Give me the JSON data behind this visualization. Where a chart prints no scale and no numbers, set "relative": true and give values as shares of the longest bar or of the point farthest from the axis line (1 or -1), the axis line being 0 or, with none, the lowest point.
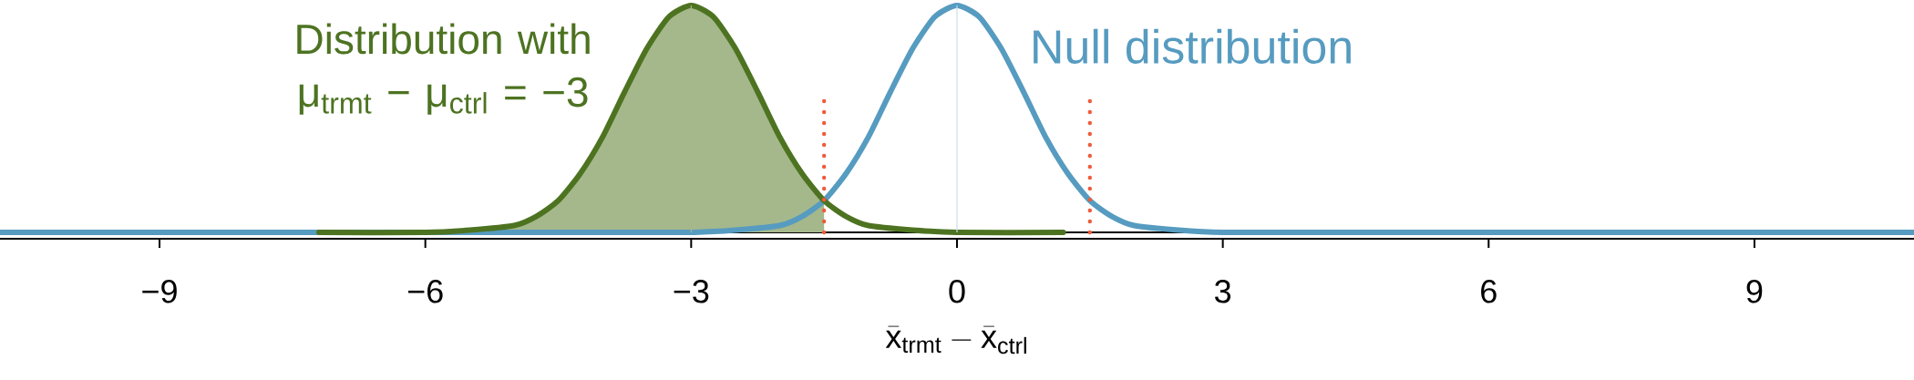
{
  "chart_data": {
    "type": "line",
    "relative": true,
    "tick_labels": "x",
    "xlabel": "\\bar{\\mathrm{x}}_{\\mathrm{trmt}}-\\bar{\\mathrm{x}}_{\\mathrm{ctrl}}",
    "xlim": [
      -10.8,
      10.8
    ],
    "xticks": [
      {
        "value": -9,
        "label": "−9"
      },
      {
        "value": -6,
        "label": "−6"
      },
      {
        "value": -3,
        "label": "−3"
      },
      0,
      3,
      6,
      9
    ],
    "ref_lines": [
      {
        "axis": "y",
        "value": 0,
        "color": "#000000"
      },
      {
        "axis": "x",
        "value": -3,
        "color": "#a3b88e"
      },
      {
        "axis": "x",
        "value": 0,
        "color": "#c8dfea"
      }
    ],
    "series": [
      {
        "type": "area",
        "color": "#a5b88b",
        "x": [
          -7.2,
          -5.5,
          -5,
          -4.75,
          -4.5,
          -4.25,
          -4,
          -3.75,
          -3.5,
          -3.25,
          -3,
          -2.75,
          -2.5,
          -2.25,
          -2,
          -1.75,
          -1.5
        ],
        "values": [
          0,
          0,
          0.03,
          0.07,
          0.14,
          0.26,
          0.42,
          0.62,
          0.81,
          0.95,
          1,
          0.95,
          0.81,
          0.62,
          0.42,
          0.26,
          0.14
        ]
      },
      {
        "name": "Null distribution",
        "color": "#569bc0",
        "x": [
          -10.8,
          -4,
          -3,
          -2.5,
          -2,
          -1.75,
          -1.5,
          -1.25,
          -1,
          -0.75,
          -0.5,
          -0.25,
          0,
          0.25,
          0.5,
          0.75,
          1,
          1.25,
          1.5,
          1.75,
          2,
          2.5,
          3,
          4,
          10.8
        ],
        "values": [
          0,
          0,
          0,
          0.01,
          0.03,
          0.07,
          0.14,
          0.26,
          0.42,
          0.62,
          0.81,
          0.95,
          1,
          0.95,
          0.81,
          0.62,
          0.42,
          0.26,
          0.14,
          0.07,
          0.03,
          0.01,
          0,
          0,
          0
        ]
      },
      {
        "name": "Distribution with μ$_{trmt}$ − μ$_{ctrl}$ = −3",
        "color": "#4d7321",
        "x": [
          -7.2,
          -6,
          -5.5,
          -5,
          -4.75,
          -4.5,
          -4.25,
          -4,
          -3.75,
          -3.5,
          -3.25,
          -3,
          -2.75,
          -2.5,
          -2.25,
          -2,
          -1.75,
          -1.5,
          -1.25,
          -1,
          -0.5,
          0,
          1.2
        ],
        "values": [
          0,
          0,
          0.01,
          0.03,
          0.07,
          0.14,
          0.26,
          0.42,
          0.62,
          0.81,
          0.95,
          1,
          0.95,
          0.81,
          0.62,
          0.42,
          0.26,
          0.14,
          0.07,
          0.03,
          0.01,
          0,
          0
        ]
      },
      {
        "color": "#f15a3a",
        "line_style": "dotted",
        "x": [
          -1.5,
          -1.5
        ],
        "values": [
          0,
          0.6
        ]
      },
      {
        "color": "#f15a3a",
        "line_style": "dotted",
        "x": [
          1.5,
          1.5
        ],
        "values": [
          0,
          0.6
        ]
      }
    ]
  }
}
